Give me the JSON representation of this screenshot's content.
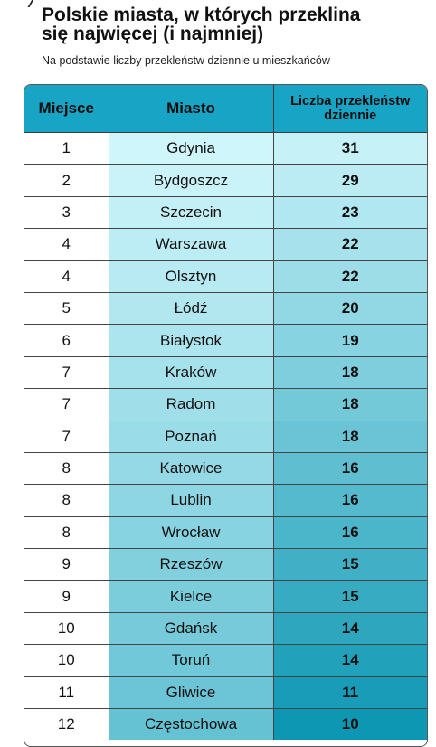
{
  "header": {
    "title_line1": "Polskie miasta, w których przeklina",
    "title_line2": "się najwięcej (i najmniej)",
    "subtitle": "Na podstawie liczby przekleństw dziennie u mieszkańców"
  },
  "colors": {
    "header_bg": "#18a4c4",
    "gradient_light": "#cff6fb",
    "gradient_dark": "#0e97b3"
  },
  "chart_data": {
    "type": "table",
    "title": "Polskie miasta, w których przeklina się najwięcej (i najmniej)",
    "subtitle": "Na podstawie liczby przekleństw dziennie u mieszkańców",
    "columns": [
      "Miejsce",
      "Miasto",
      "Liczba przekleństw dziennie"
    ],
    "rows": [
      {
        "rank": "1",
        "city": "Gdynia",
        "value": 31
      },
      {
        "rank": "2",
        "city": "Bydgoszcz",
        "value": 29
      },
      {
        "rank": "3",
        "city": "Szczecin",
        "value": 23
      },
      {
        "rank": "4",
        "city": "Warszawa",
        "value": 22
      },
      {
        "rank": "4",
        "city": "Olsztyn",
        "value": 22
      },
      {
        "rank": "5",
        "city": "Łódź",
        "value": 20
      },
      {
        "rank": "6",
        "city": "Białystok",
        "value": 19
      },
      {
        "rank": "7",
        "city": "Kraków",
        "value": 18
      },
      {
        "rank": "7",
        "city": "Radom",
        "value": 18
      },
      {
        "rank": "7",
        "city": "Poznań",
        "value": 18
      },
      {
        "rank": "8",
        "city": "Katowice",
        "value": 16
      },
      {
        "rank": "8",
        "city": "Lublin",
        "value": 16
      },
      {
        "rank": "8",
        "city": "Wrocław",
        "value": 16
      },
      {
        "rank": "9",
        "city": "Rzeszów",
        "value": 15
      },
      {
        "rank": "9",
        "city": "Kielce",
        "value": 15
      },
      {
        "rank": "10",
        "city": "Gdańsk",
        "value": 14
      },
      {
        "rank": "10",
        "city": "Toruń",
        "value": 14
      },
      {
        "rank": "11",
        "city": "Gliwice",
        "value": 11
      },
      {
        "rank": "12",
        "city": "Częstochowa",
        "value": 10
      }
    ]
  }
}
